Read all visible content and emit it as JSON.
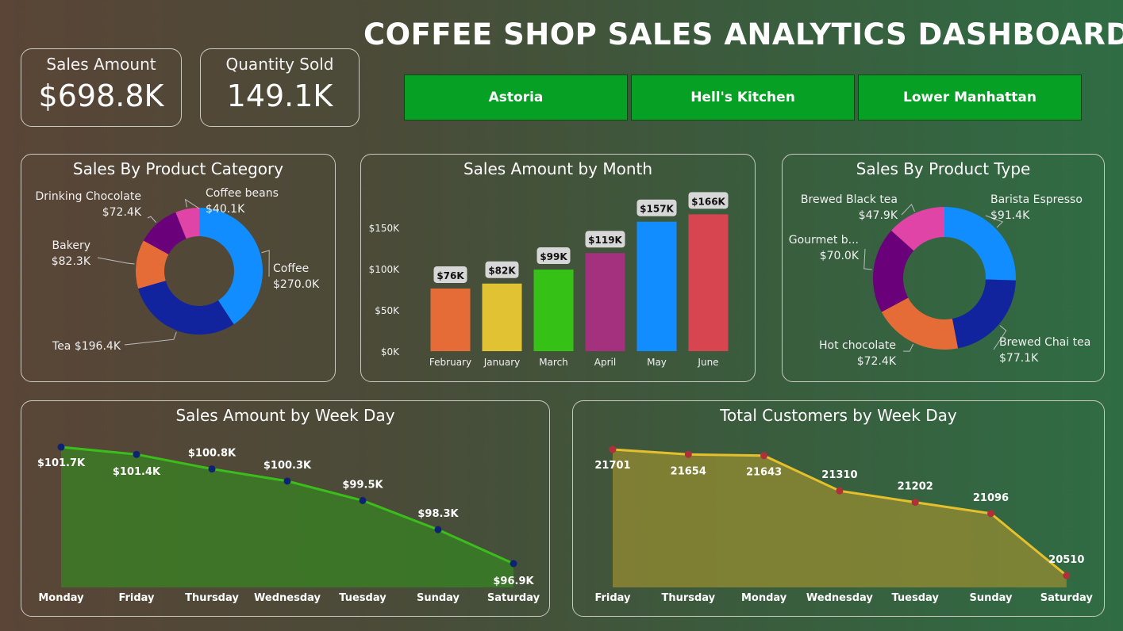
{
  "title": "COFFEE SHOP SALES ANALYTICS DASHBOARD",
  "kpis": {
    "sales_amount": {
      "label": "Sales Amount",
      "value": "$698.8K"
    },
    "quantity_sold": {
      "label": "Quantity Sold",
      "value": "149.1K"
    }
  },
  "filters": [
    "Astoria",
    "Hell's Kitchen",
    "Lower Manhattan"
  ],
  "colors": {
    "filter_bg": "#05a024",
    "line_green": "#3bbd1c",
    "line_yellow": "#e5c02c",
    "dot_navy": "#0e2272",
    "dot_red": "#b0303a"
  },
  "chart_data": [
    {
      "id": "category",
      "type": "pie",
      "title": "Sales By Product Category",
      "slices": [
        {
          "label": "Coffee",
          "value_label": "$270.0K",
          "value": 270.0,
          "color": "#118dff"
        },
        {
          "label": "Tea",
          "value_label": "$196.4K",
          "value": 196.4,
          "color": "#12239e"
        },
        {
          "label": "Bakery",
          "value_label": "$82.3K",
          "value": 82.3,
          "color": "#e66c37"
        },
        {
          "label": "Drinking Chocolate",
          "value_label": "$72.4K",
          "value": 72.4,
          "color": "#6b007b"
        },
        {
          "label": "Coffee beans",
          "value_label": "$40.1K",
          "value": 40.1,
          "color": "#e044a7"
        }
      ]
    },
    {
      "id": "month",
      "type": "bar",
      "title": "Sales Amount by Month",
      "categories": [
        "February",
        "January",
        "March",
        "April",
        "May",
        "June"
      ],
      "values": [
        76,
        82,
        99,
        119,
        157,
        166
      ],
      "value_labels": [
        "$76K",
        "$82K",
        "$99K",
        "$119K",
        "$157K",
        "$166K"
      ],
      "colors": [
        "#e66c37",
        "#e0c233",
        "#36c117",
        "#a3317e",
        "#118dff",
        "#d64550"
      ],
      "yticks": [
        "$0K",
        "$50K",
        "$100K",
        "$150K"
      ],
      "ytick_values": [
        0,
        50,
        100,
        150
      ],
      "ylim": [
        0,
        175
      ]
    },
    {
      "id": "type",
      "type": "pie",
      "title": "Sales By Product Type",
      "slices": [
        {
          "label": "Barista Espresso",
          "value_label": "$91.4K",
          "value": 91.4,
          "color": "#118dff"
        },
        {
          "label": "Brewed Chai tea",
          "value_label": "$77.1K",
          "value": 77.1,
          "color": "#12239e"
        },
        {
          "label": "Hot chocolate",
          "value_label": "$72.4K",
          "value": 72.4,
          "color": "#e66c37"
        },
        {
          "label": "Gourmet b...",
          "value_label": "$70.0K",
          "value": 70.0,
          "color": "#6b007b"
        },
        {
          "label": "Brewed Black tea",
          "value_label": "$47.9K",
          "value": 47.9,
          "color": "#e044a7"
        }
      ]
    },
    {
      "id": "weekday_sales",
      "type": "area",
      "title": "Sales Amount by Week Day",
      "categories": [
        "Monday",
        "Friday",
        "Thursday",
        "Wednesday",
        "Tuesday",
        "Sunday",
        "Saturday"
      ],
      "values": [
        101.7,
        101.4,
        100.8,
        100.3,
        99.5,
        98.3,
        96.9
      ],
      "value_labels": [
        "$101.7K",
        "$101.4K",
        "$100.8K",
        "$100.3K",
        "$99.5K",
        "$98.3K",
        "$96.9K"
      ]
    },
    {
      "id": "weekday_customers",
      "type": "area",
      "title": "Total Customers by Week Day",
      "categories": [
        "Friday",
        "Thursday",
        "Monday",
        "Wednesday",
        "Tuesday",
        "Sunday",
        "Saturday"
      ],
      "values": [
        21701,
        21654,
        21643,
        21310,
        21202,
        21096,
        20510
      ],
      "value_labels": [
        "21701",
        "21654",
        "21643",
        "21310",
        "21202",
        "21096",
        "20510"
      ]
    }
  ]
}
